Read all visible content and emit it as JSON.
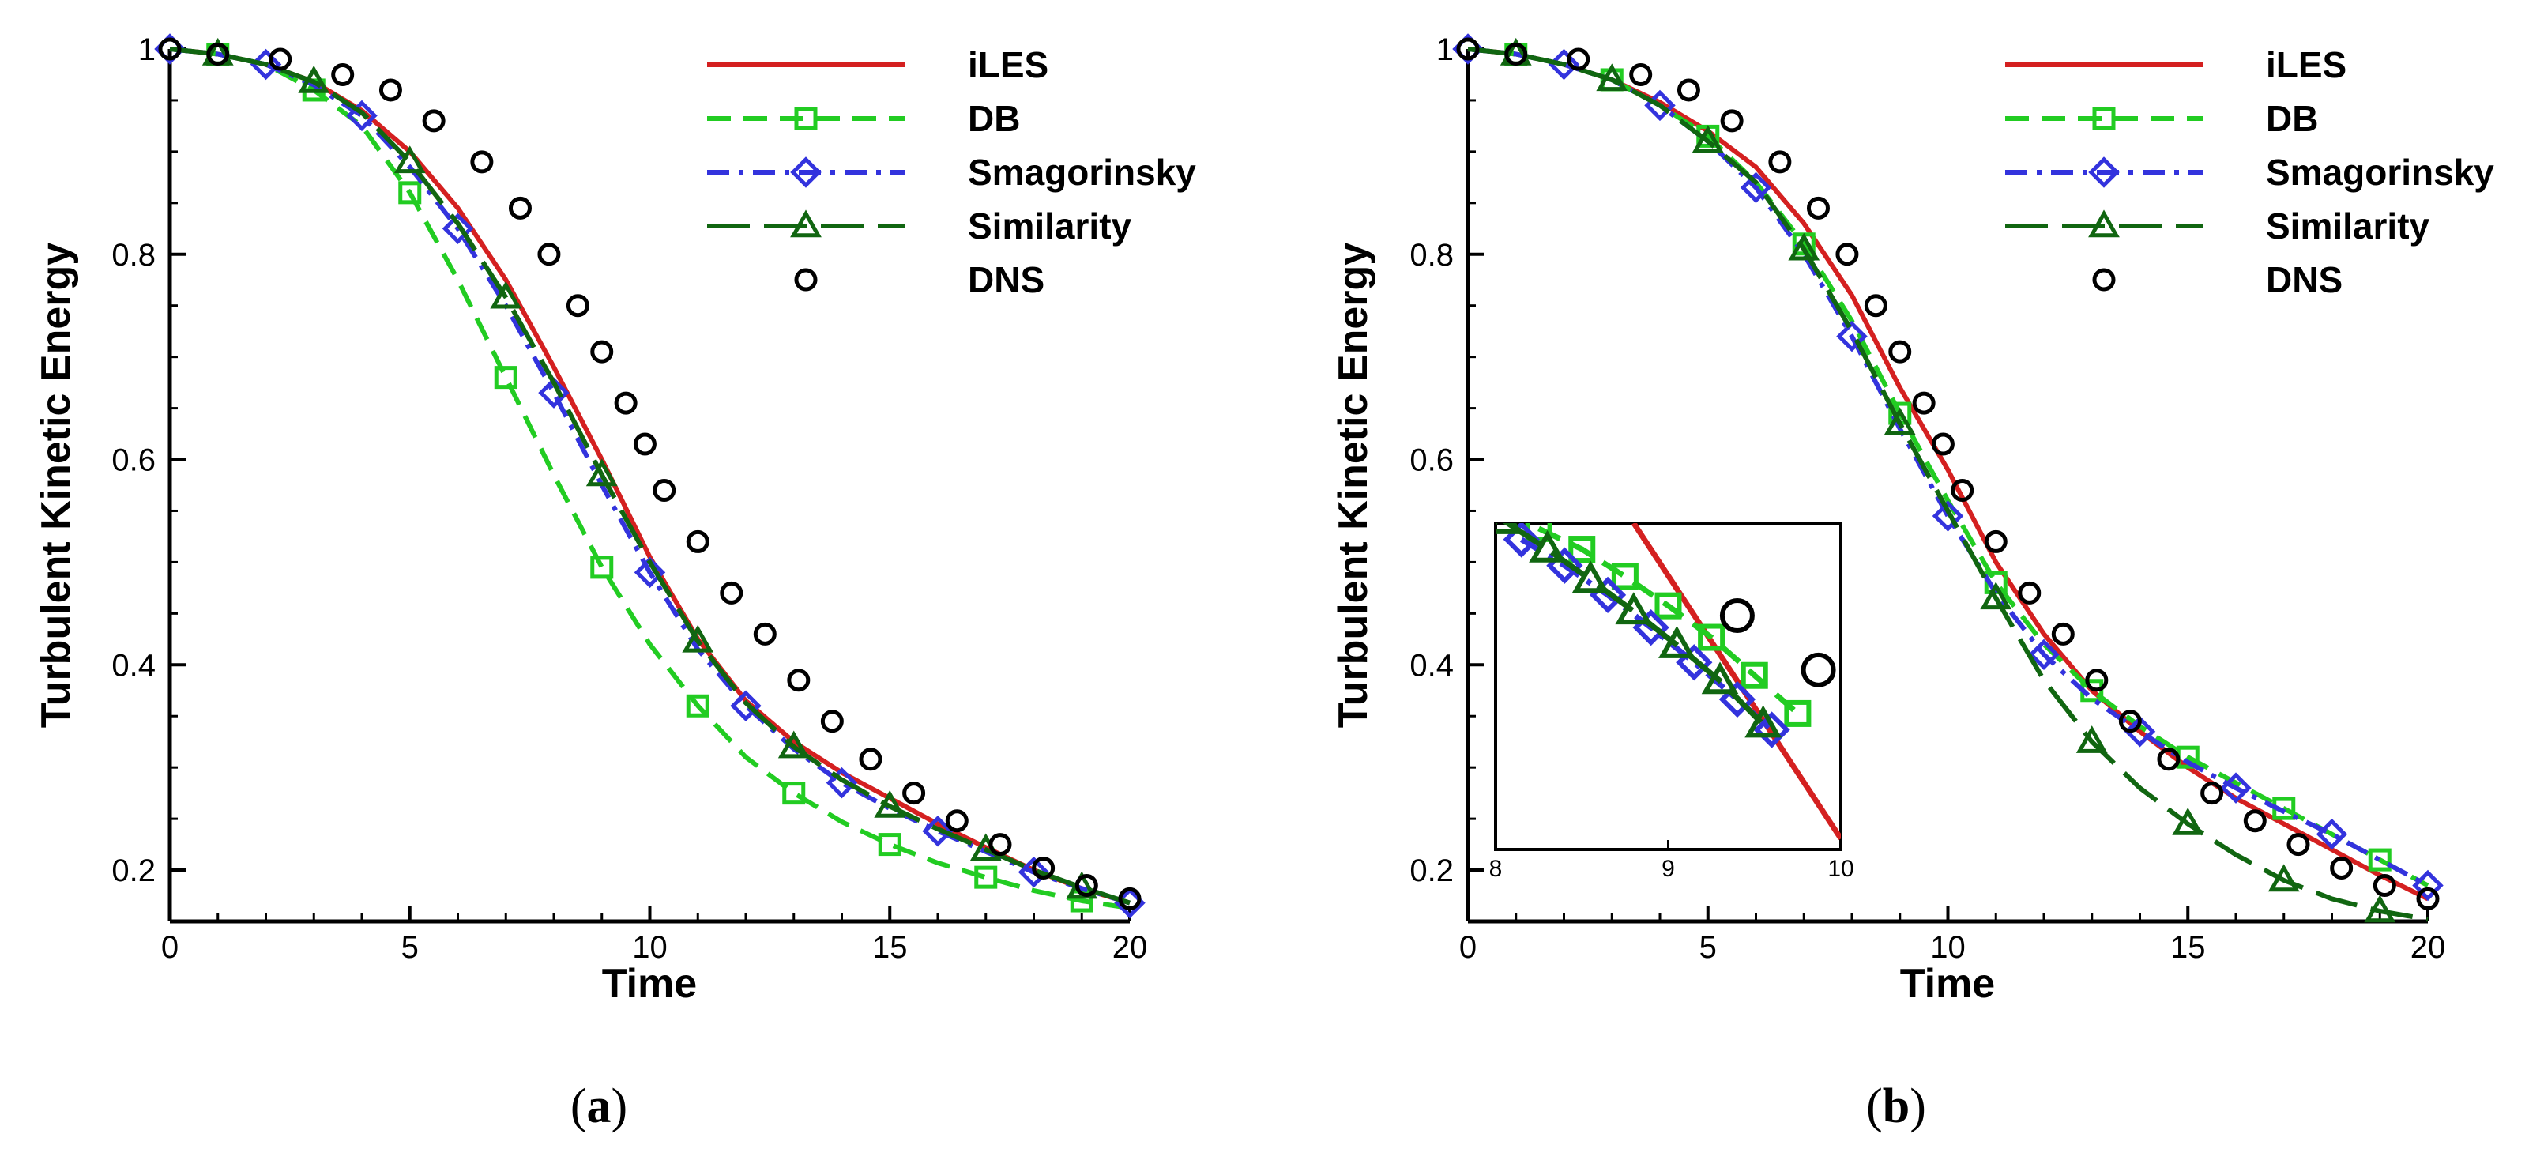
{
  "chart_data": [
    {
      "type": "line",
      "panel_label": "a",
      "xlabel": "Time",
      "ylabel": "Turbulent Kinetic Energy",
      "xlim": [
        0,
        20
      ],
      "ylim": [
        0.15,
        1.0
      ],
      "xticks": [
        0,
        5,
        10,
        15,
        20
      ],
      "yticks": [
        0.2,
        0.4,
        0.6,
        0.8,
        1
      ],
      "xtick_labels": [
        "0",
        "5",
        "10",
        "15",
        "20"
      ],
      "ytick_labels": [
        "0.2",
        "0.4",
        "0.6",
        "0.8",
        "1"
      ],
      "legend_position": "top-right",
      "series": [
        {
          "name": "iLES",
          "style": "solid",
          "marker": "none",
          "color": "#d42020",
          "x": [
            0,
            1,
            2,
            3,
            4,
            5,
            6,
            7,
            8,
            9,
            10,
            11,
            12,
            13,
            14,
            15,
            16,
            17,
            18,
            19,
            20
          ],
          "y": [
            1.0,
            0.995,
            0.985,
            0.968,
            0.94,
            0.9,
            0.845,
            0.775,
            0.69,
            0.6,
            0.505,
            0.425,
            0.365,
            0.325,
            0.295,
            0.27,
            0.245,
            0.222,
            0.2,
            0.182,
            0.168
          ]
        },
        {
          "name": "DB",
          "style": "dashed",
          "marker": "square",
          "color": "#22cc22",
          "x": [
            0,
            1,
            2,
            3,
            4,
            5,
            6,
            7,
            8,
            9,
            10,
            11,
            12,
            13,
            14,
            15,
            16,
            17,
            18,
            19,
            20
          ],
          "y": [
            1.0,
            0.995,
            0.985,
            0.96,
            0.925,
            0.86,
            0.775,
            0.68,
            0.585,
            0.495,
            0.42,
            0.36,
            0.31,
            0.275,
            0.247,
            0.225,
            0.207,
            0.193,
            0.18,
            0.17,
            0.163
          ]
        },
        {
          "name": "Smagorinsky",
          "style": "dashdot",
          "marker": "diamond",
          "color": "#3333dd",
          "x": [
            0,
            1,
            2,
            3,
            4,
            5,
            6,
            7,
            8,
            9,
            10,
            11,
            12,
            13,
            14,
            15,
            16,
            17,
            18,
            19,
            20
          ],
          "y": [
            1.0,
            0.995,
            0.985,
            0.965,
            0.935,
            0.885,
            0.825,
            0.75,
            0.665,
            0.575,
            0.49,
            0.415,
            0.36,
            0.318,
            0.285,
            0.26,
            0.238,
            0.218,
            0.198,
            0.182,
            0.168
          ]
        },
        {
          "name": "Similarity",
          "style": "longdash",
          "marker": "triangle",
          "color": "#116611",
          "x": [
            0,
            1,
            2,
            3,
            4,
            5,
            6,
            7,
            8,
            9,
            10,
            11,
            12,
            13,
            14,
            15,
            16,
            17,
            18,
            19,
            20
          ],
          "y": [
            1.0,
            0.995,
            0.985,
            0.968,
            0.938,
            0.89,
            0.83,
            0.758,
            0.675,
            0.585,
            0.5,
            0.423,
            0.363,
            0.32,
            0.288,
            0.262,
            0.24,
            0.22,
            0.2,
            0.183,
            0.168
          ]
        },
        {
          "name": "DNS",
          "style": "none",
          "marker": "circle",
          "color": "#000000",
          "x": [
            0,
            1,
            2.3,
            3.6,
            4.6,
            5.5,
            6.5,
            7.3,
            7.9,
            8.5,
            9,
            9.5,
            9.9,
            10.3,
            11,
            11.7,
            12.4,
            13.1,
            13.8,
            14.6,
            15.5,
            16.4,
            17.3,
            18.2,
            19.1,
            20
          ],
          "y": [
            1.0,
            0.995,
            0.99,
            0.975,
            0.96,
            0.93,
            0.89,
            0.845,
            0.8,
            0.75,
            0.705,
            0.655,
            0.615,
            0.57,
            0.52,
            0.47,
            0.43,
            0.385,
            0.345,
            0.308,
            0.275,
            0.248,
            0.225,
            0.202,
            0.185,
            0.172
          ]
        }
      ]
    },
    {
      "type": "line",
      "panel_label": "b",
      "xlabel": "Time",
      "ylabel": "Turbulent Kinetic Energy",
      "xlim": [
        0,
        20
      ],
      "ylim": [
        0.15,
        1.0
      ],
      "xticks": [
        0,
        5,
        10,
        15,
        20
      ],
      "yticks": [
        0.2,
        0.4,
        0.6,
        0.8,
        1
      ],
      "xtick_labels": [
        "0",
        "5",
        "10",
        "15",
        "20"
      ],
      "ytick_labels": [
        "0.2",
        "0.4",
        "0.6",
        "0.8",
        "1"
      ],
      "legend_position": "top-right",
      "series": [
        {
          "name": "iLES",
          "style": "solid",
          "marker": "none",
          "color": "#d42020",
          "x": [
            0,
            1,
            2,
            3,
            4,
            5,
            6,
            7,
            8,
            9,
            10,
            11,
            12,
            13,
            14,
            15,
            16,
            17,
            18,
            19,
            20
          ],
          "y": [
            1.0,
            0.995,
            0.985,
            0.97,
            0.948,
            0.92,
            0.885,
            0.83,
            0.76,
            0.67,
            0.59,
            0.5,
            0.43,
            0.375,
            0.335,
            0.3,
            0.27,
            0.245,
            0.22,
            0.195,
            0.172
          ]
        },
        {
          "name": "DB",
          "style": "dashed",
          "marker": "square",
          "color": "#22cc22",
          "x": [
            0,
            1,
            2,
            3,
            4,
            5,
            6,
            7,
            8,
            9,
            10,
            11,
            12,
            13,
            14,
            15,
            16,
            17,
            18,
            19,
            20
          ],
          "y": [
            1.0,
            0.995,
            0.985,
            0.97,
            0.945,
            0.915,
            0.87,
            0.81,
            0.735,
            0.645,
            0.56,
            0.48,
            0.42,
            0.375,
            0.34,
            0.31,
            0.285,
            0.26,
            0.235,
            0.21,
            0.185
          ]
        },
        {
          "name": "Smagorinsky",
          "style": "dashdot",
          "marker": "diamond",
          "color": "#3333dd",
          "x": [
            0,
            1,
            2,
            3,
            4,
            5,
            6,
            7,
            8,
            9,
            10,
            11,
            12,
            13,
            14,
            15,
            16,
            17,
            18,
            19,
            20
          ],
          "y": [
            1.0,
            0.995,
            0.985,
            0.97,
            0.945,
            0.91,
            0.865,
            0.8,
            0.72,
            0.63,
            0.545,
            0.47,
            0.41,
            0.367,
            0.335,
            0.305,
            0.28,
            0.257,
            0.235,
            0.21,
            0.185
          ]
        },
        {
          "name": "Similarity",
          "style": "longdash",
          "marker": "triangle",
          "color": "#116611",
          "x": [
            0,
            1,
            2,
            3,
            4,
            5,
            6,
            7,
            8,
            9,
            10,
            11,
            12,
            13,
            14,
            15,
            16,
            17,
            18,
            19,
            20
          ],
          "y": [
            1.0,
            0.995,
            0.985,
            0.97,
            0.945,
            0.91,
            0.87,
            0.805,
            0.725,
            0.635,
            0.55,
            0.465,
            0.385,
            0.325,
            0.28,
            0.245,
            0.215,
            0.19,
            0.172,
            0.16,
            0.152
          ]
        },
        {
          "name": "DNS",
          "style": "none",
          "marker": "circle",
          "color": "#000000",
          "x": [
            0,
            1,
            2.3,
            3.6,
            4.6,
            5.5,
            6.5,
            7.3,
            7.9,
            8.5,
            9,
            9.5,
            9.9,
            10.3,
            11,
            11.7,
            12.4,
            13.1,
            13.8,
            14.6,
            15.5,
            16.4,
            17.3,
            18.2,
            19.1,
            20
          ],
          "y": [
            1.0,
            0.995,
            0.99,
            0.975,
            0.96,
            0.93,
            0.89,
            0.845,
            0.8,
            0.75,
            0.705,
            0.655,
            0.615,
            0.57,
            0.52,
            0.47,
            0.43,
            0.385,
            0.345,
            0.308,
            0.275,
            0.248,
            0.225,
            0.202,
            0.185,
            0.172
          ]
        }
      ],
      "inset": {
        "xlim": [
          8,
          10
        ],
        "xticks": [
          8,
          9,
          10
        ],
        "xtick_labels": [
          "8",
          "9",
          "10"
        ],
        "ylim": [
          0.55,
          0.85
        ],
        "series": [
          {
            "name": "iLES",
            "x": [
              8.8,
              10
            ],
            "y": [
              0.85,
              0.56
            ]
          },
          {
            "name": "DB",
            "x": [
              8.25,
              8.5,
              8.75,
              9.0,
              9.25,
              9.5,
              9.75
            ],
            "y": [
              0.845,
              0.826,
              0.801,
              0.774,
              0.745,
              0.71,
              0.675
            ]
          },
          {
            "name": "Smagorinsky",
            "x": [
              8.15,
              8.4,
              8.65,
              8.9,
              9.15,
              9.4,
              9.6
            ],
            "y": [
              0.835,
              0.811,
              0.784,
              0.754,
              0.722,
              0.688,
              0.66
            ]
          },
          {
            "name": "Similarity",
            "x": [
              8.05,
              8.3,
              8.55,
              8.8,
              9.05,
              9.3,
              9.55
            ],
            "y": [
              0.852,
              0.826,
              0.798,
              0.769,
              0.738,
              0.705,
              0.665
            ]
          },
          {
            "name": "DNS",
            "x": [
              9.4,
              9.87
            ],
            "y": [
              0.765,
              0.715
            ]
          }
        ]
      }
    }
  ]
}
